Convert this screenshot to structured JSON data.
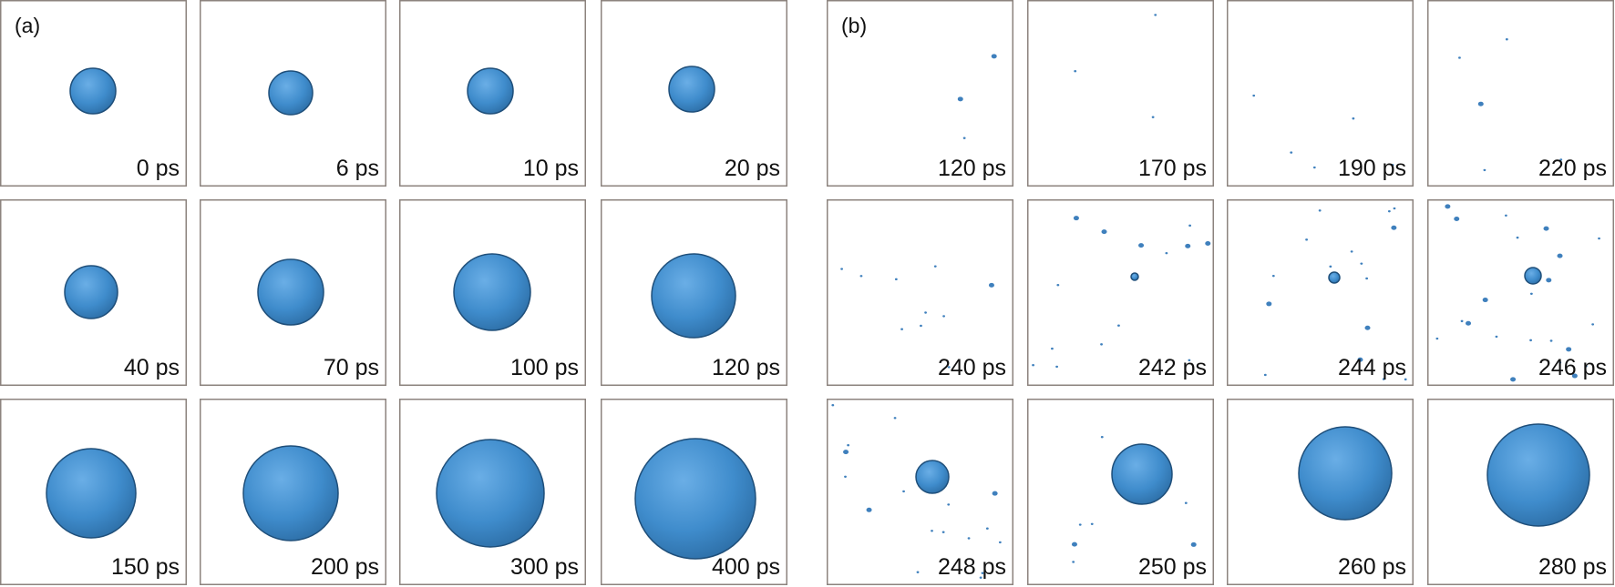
{
  "panels": [
    {
      "label": "(a)",
      "frames": [
        "0 ps",
        "6 ps",
        "10 ps",
        "20 ps",
        "40 ps",
        "70 ps",
        "100 ps",
        "120 ps",
        "150 ps",
        "200 ps",
        "300 ps",
        "400 ps"
      ]
    },
    {
      "label": "(b)",
      "frames": [
        "120 ps",
        "170 ps",
        "190 ps",
        "220 ps",
        "240 ps",
        "242 ps",
        "244 ps",
        "246 ps",
        "248 ps",
        "250 ps",
        "260 ps",
        "280 ps"
      ]
    }
  ]
}
